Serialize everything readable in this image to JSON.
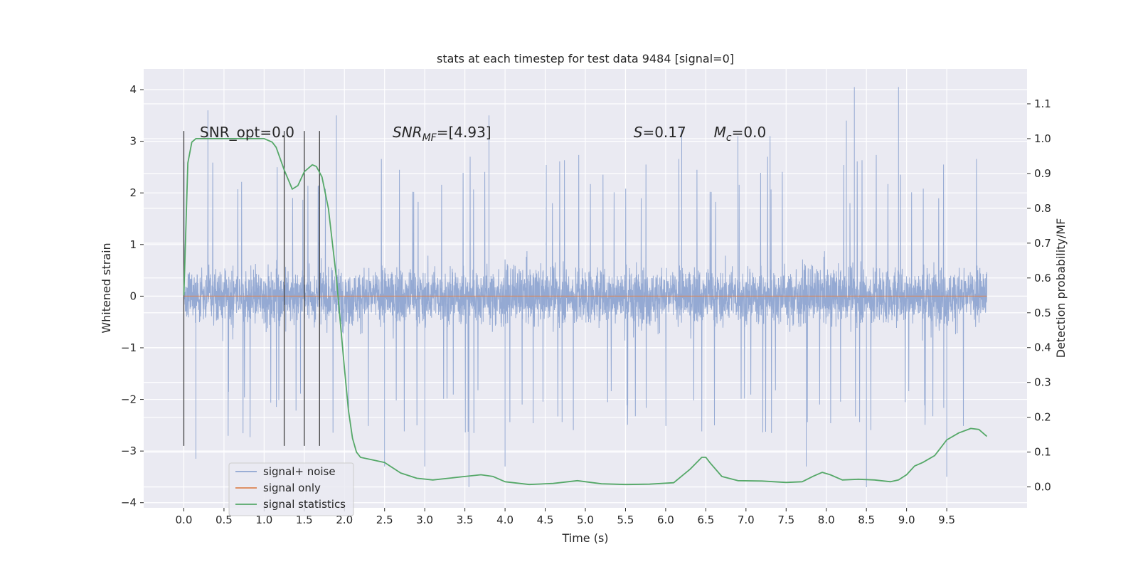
{
  "chart_data": {
    "type": "line",
    "title": "stats at each timestep for test data 9484 [signal=0]",
    "xlabel": "Time (s)",
    "ylabel": "Whitened strain",
    "y2label": "Detection probability/MF",
    "xlim": [
      -0.5,
      10.5
    ],
    "ylim": [
      -4.1,
      4.4
    ],
    "y2lim": [
      -0.06,
      1.2
    ],
    "grid": true,
    "legend_position": "lower-left",
    "xticks": [
      0.0,
      0.5,
      1.0,
      1.5,
      2.0,
      2.5,
      3.0,
      3.5,
      4.0,
      4.5,
      5.0,
      5.5,
      6.0,
      6.5,
      7.0,
      7.5,
      8.0,
      8.5,
      9.0,
      9.5
    ],
    "xtick_labels": [
      "0.0",
      "0.5",
      "1.0",
      "1.5",
      "2.0",
      "2.5",
      "3.0",
      "3.5",
      "4.0",
      "4.5",
      "5.0",
      "5.5",
      "6.0",
      "6.5",
      "7.0",
      "7.5",
      "8.0",
      "8.5",
      "9.0",
      "9.5"
    ],
    "yticks": [
      4,
      3,
      2,
      1,
      0,
      -1,
      -2,
      -3,
      -4
    ],
    "ytick_labels": [
      "4",
      "3",
      "2",
      "1",
      "0",
      "−1",
      "−2",
      "−3",
      "−4"
    ],
    "y2ticks": [
      1.1,
      1.0,
      0.9,
      0.8,
      0.7,
      0.6,
      0.5,
      0.4,
      0.3,
      0.2,
      0.1,
      0.0
    ],
    "y2tick_labels": [
      "1.1",
      "1.0",
      "0.9",
      "0.8",
      "0.7",
      "0.6",
      "0.5",
      "0.4",
      "0.3",
      "0.2",
      "0.1",
      "0.0"
    ],
    "annotations": {
      "snr_opt": "SNR_opt=0.0",
      "snr_mf_main": "SNR",
      "snr_mf_sub": "MF",
      "snr_mf_rest": "=[4.93]",
      "s_main": "S",
      "s_rest": "=0.17",
      "mc_main": "M",
      "mc_sub": "c",
      "mc_rest": "=0.0"
    },
    "annotation_x": {
      "snr_opt": 0.2,
      "snr_mf": 2.6,
      "s": 5.6,
      "mc": 6.6
    },
    "annotation_y2": 1.0,
    "vertical_markers": {
      "x": [
        0.0,
        1.25,
        1.5,
        1.69
      ],
      "y_range": [
        -2.9,
        3.2
      ]
    },
    "series": [
      {
        "name": "signal+ noise",
        "color": "#8fa5d1",
        "axis": "left",
        "kind": "noise",
        "x_range": [
          0.0,
          10.0
        ],
        "band": [
          -2.3,
          2.1
        ],
        "peaks": [
          {
            "x": 0.3,
            "y": 3.6
          },
          {
            "x": 1.9,
            "y": 3.5
          },
          {
            "x": 3.8,
            "y": 3.5
          },
          {
            "x": 8.35,
            "y": 4.05
          },
          {
            "x": 8.9,
            "y": 4.05
          },
          {
            "x": 8.25,
            "y": 3.4
          },
          {
            "x": 7.3,
            "y": 3.1
          },
          {
            "x": 6.9,
            "y": 3.1
          },
          {
            "x": 3.55,
            "y": -3.7
          },
          {
            "x": 8.5,
            "y": -3.7
          },
          {
            "x": 9.5,
            "y": -3.5
          },
          {
            "x": 0.15,
            "y": -3.15
          },
          {
            "x": 2.5,
            "y": -3.3
          },
          {
            "x": 3.0,
            "y": -3.3
          },
          {
            "x": 7.75,
            "y": -3.3
          },
          {
            "x": 4.0,
            "y": -3.3
          },
          {
            "x": 6.2,
            "y": 3.25
          }
        ]
      },
      {
        "name": "signal only",
        "color": "#dd8452",
        "axis": "left",
        "x": [
          0.0,
          10.0
        ],
        "y": [
          0.0,
          0.0
        ]
      },
      {
        "name": "signal statistics",
        "color": "#55a868",
        "axis": "right",
        "x": [
          0.0,
          0.05,
          0.1,
          0.15,
          0.2,
          0.3,
          0.5,
          0.8,
          1.0,
          1.1,
          1.15,
          1.25,
          1.35,
          1.42,
          1.5,
          1.6,
          1.65,
          1.72,
          1.8,
          1.9,
          1.95,
          2.0,
          2.05,
          2.1,
          2.15,
          2.2,
          2.3,
          2.5,
          2.7,
          2.9,
          3.1,
          3.3,
          3.5,
          3.7,
          3.85,
          4.0,
          4.3,
          4.6,
          4.9,
          5.2,
          5.5,
          5.8,
          6.1,
          6.3,
          6.45,
          6.5,
          6.55,
          6.7,
          6.9,
          7.2,
          7.5,
          7.7,
          7.85,
          7.95,
          8.05,
          8.2,
          8.4,
          8.6,
          8.8,
          8.9,
          9.0,
          9.1,
          9.2,
          9.35,
          9.5,
          9.65,
          9.8,
          9.9,
          9.95,
          10.0
        ],
        "y": [
          0.55,
          0.93,
          0.99,
          1.0,
          1.0,
          1.0,
          1.0,
          1.0,
          1.0,
          0.99,
          0.975,
          0.91,
          0.855,
          0.865,
          0.905,
          0.925,
          0.92,
          0.89,
          0.8,
          0.6,
          0.47,
          0.34,
          0.22,
          0.14,
          0.1,
          0.085,
          0.08,
          0.07,
          0.04,
          0.025,
          0.02,
          0.025,
          0.03,
          0.035,
          0.03,
          0.015,
          0.007,
          0.01,
          0.018,
          0.009,
          0.007,
          0.008,
          0.012,
          0.05,
          0.085,
          0.085,
          0.07,
          0.03,
          0.018,
          0.017,
          0.013,
          0.015,
          0.032,
          0.042,
          0.035,
          0.02,
          0.022,
          0.02,
          0.015,
          0.02,
          0.035,
          0.06,
          0.07,
          0.09,
          0.135,
          0.155,
          0.168,
          0.165,
          0.155,
          0.145
        ]
      }
    ]
  }
}
